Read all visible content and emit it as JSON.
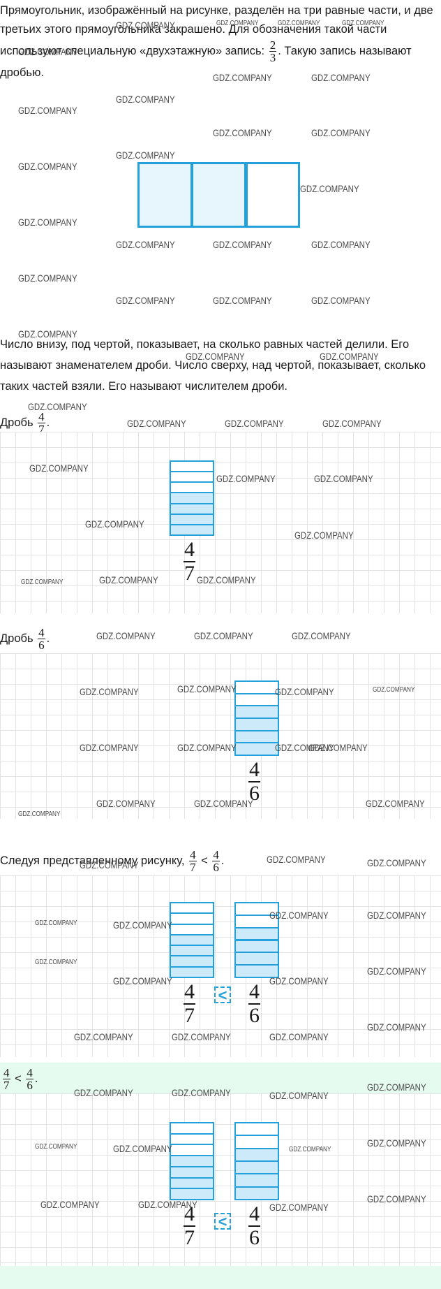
{
  "intro": {
    "text_before": "Прямоугольник, изображённый на рисунке, разделён на три равные части, и две третьих этого прямоугольника закрашено. Для обозначения такой части используют специальную «двухэтажную» запись:",
    "fraction": {
      "numerator": 2,
      "denominator": 3
    },
    "text_after": ". Такую запись называют дробью."
  },
  "explanation": "Число внизу, под чертой, показывает, на сколько равных частей делили. Его называют знаменателем дроби. Число сверху, над чертой, показывает, сколько таких частей взяли. Его называют числителем дроби.",
  "example_1": {
    "label": "Дробь",
    "fraction": {
      "numerator": 4,
      "denominator": 7
    },
    "end": "."
  },
  "example_2": {
    "label": "Дробь",
    "fraction": {
      "numerator": 4,
      "denominator": 6
    },
    "end": "."
  },
  "comparison": {
    "text": "Следуя представленному рисунку,",
    "left": {
      "numerator": 4,
      "denominator": 7
    },
    "sign": "<",
    "right": {
      "numerator": 4,
      "denominator": 6
    },
    "end": "."
  },
  "answer": {
    "left": {
      "numerator": 4,
      "denominator": 7
    },
    "sign": "<",
    "right": {
      "numerator": 4,
      "denominator": 6
    },
    "end": "."
  },
  "watermark": "GDZ.COMPANY"
}
